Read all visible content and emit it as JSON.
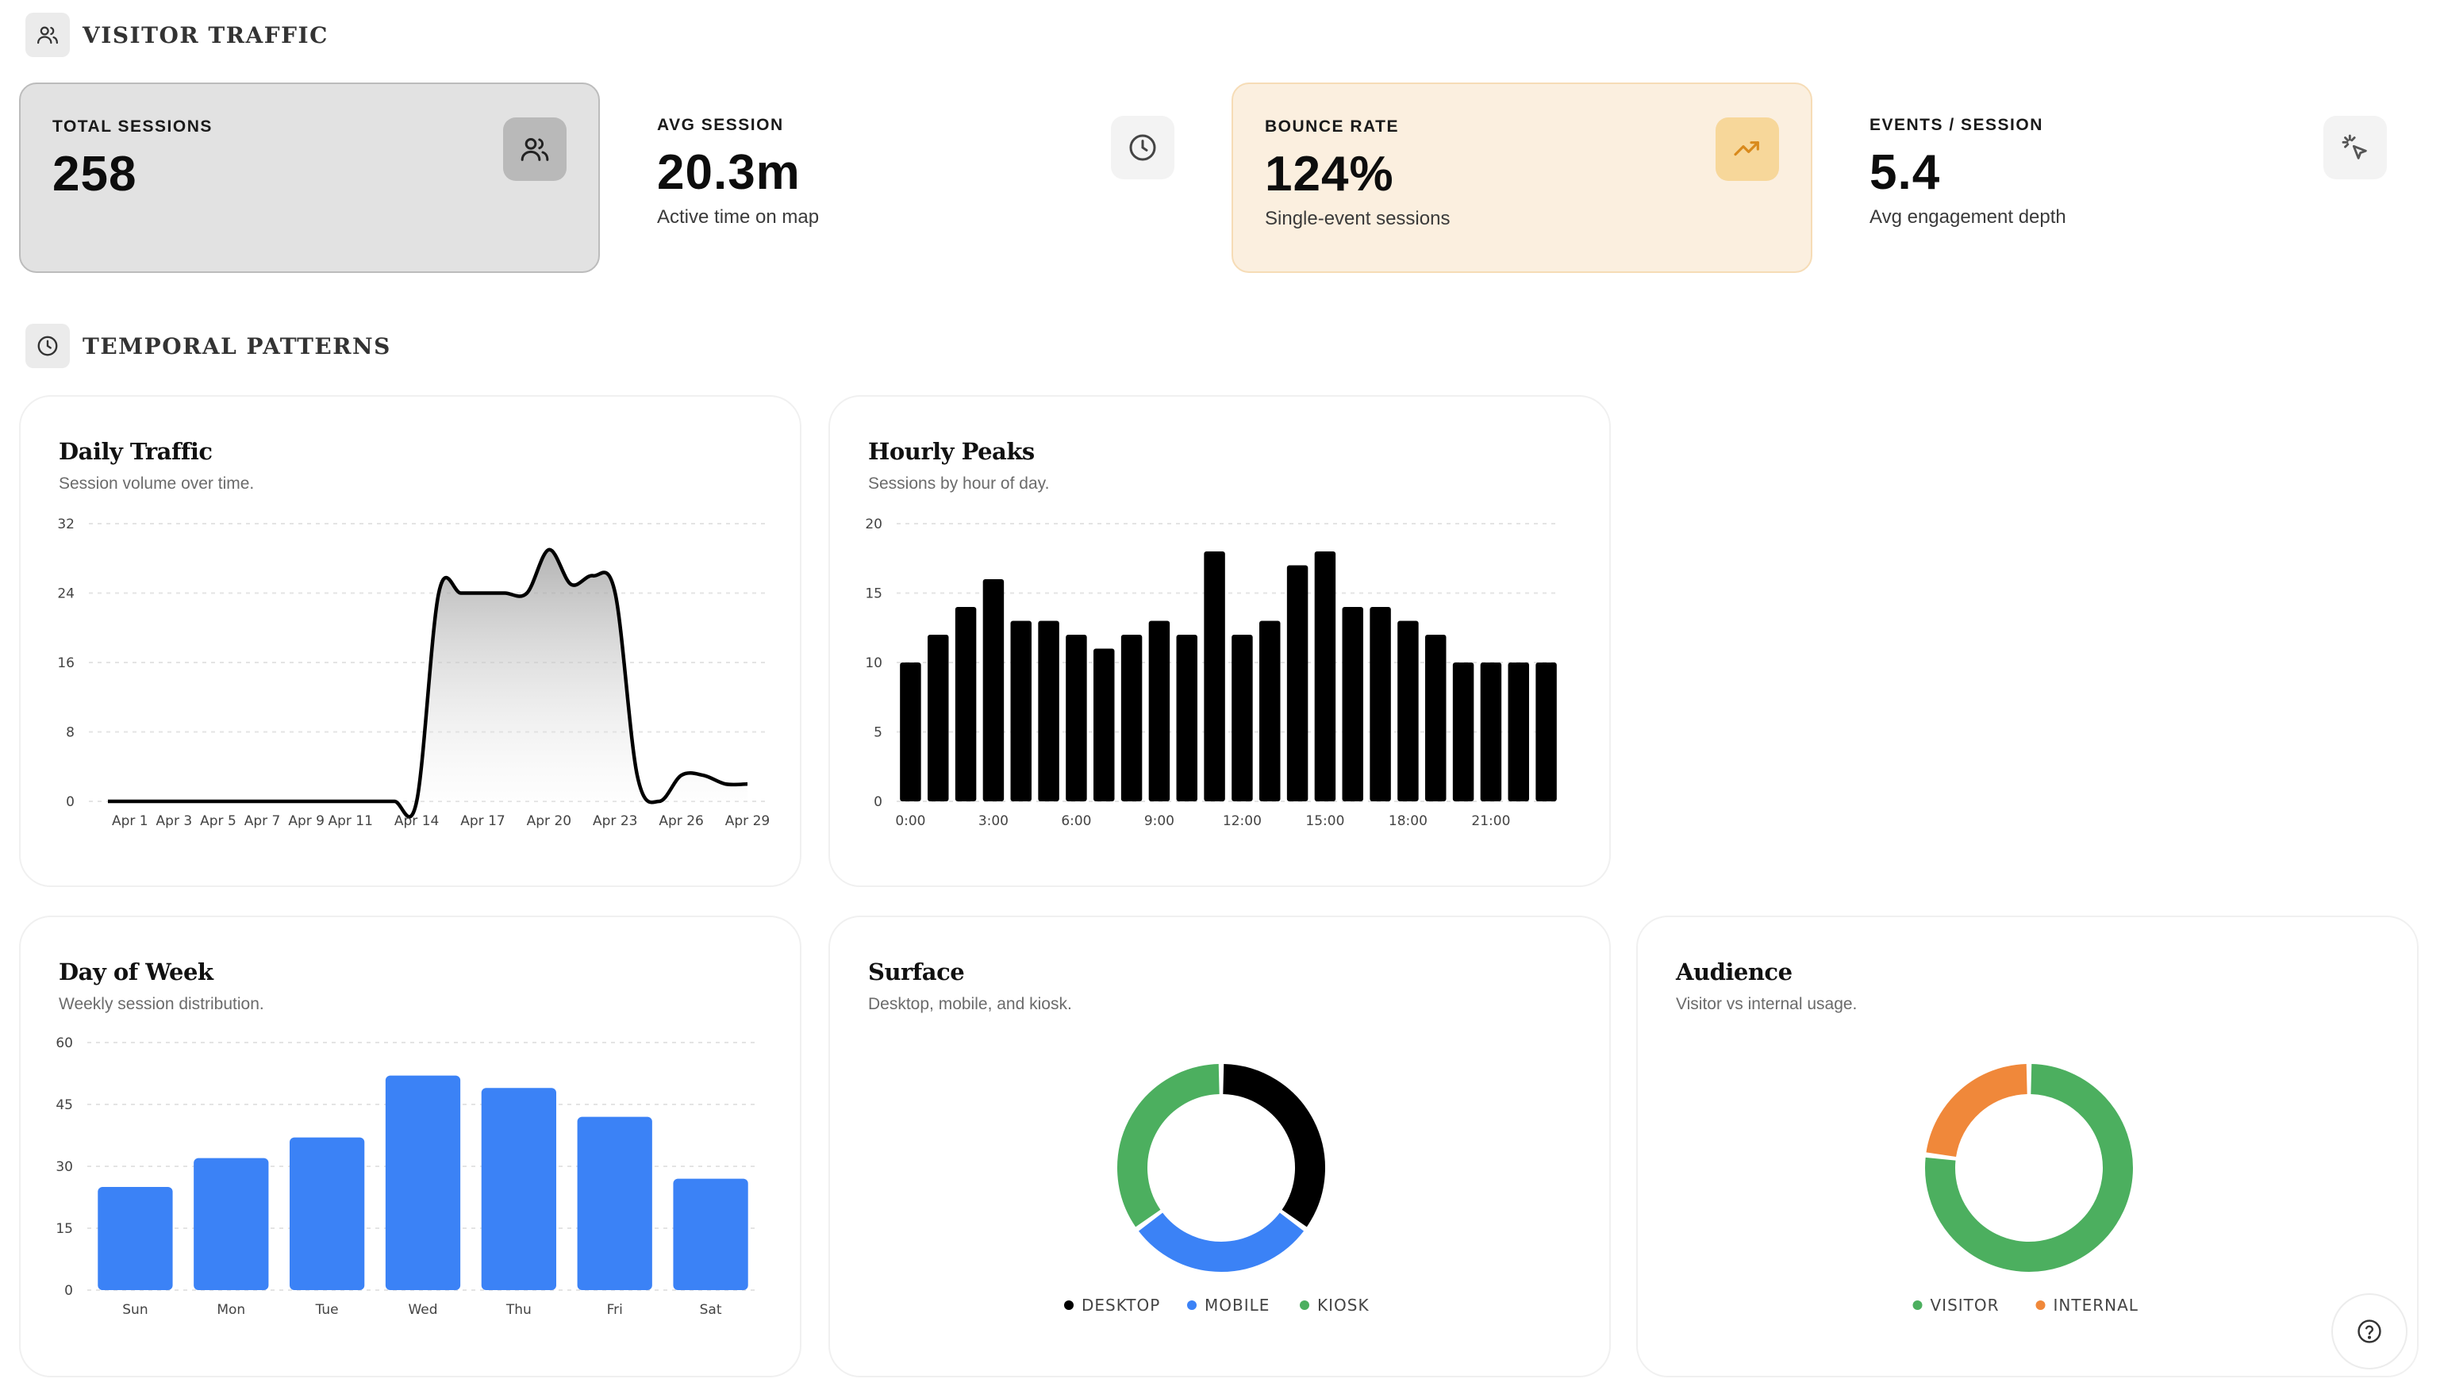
{
  "sections": {
    "visitor": {
      "title": "VISITOR TRAFFIC",
      "icon": "users-icon"
    },
    "temporal": {
      "title": "TEMPORAL PATTERNS",
      "icon": "clock-icon"
    }
  },
  "stats": [
    {
      "label": "TOTAL SESSIONS",
      "value": "258",
      "sub": "",
      "icon": "users-icon"
    },
    {
      "label": "AVG SESSION",
      "value": "20.3m",
      "sub": "Active time on map",
      "icon": "clock-icon"
    },
    {
      "label": "BOUNCE RATE",
      "value": "124%",
      "sub": "Single-event sessions",
      "icon": "trending-up-icon"
    },
    {
      "label": "EVENTS / SESSION",
      "value": "5.4",
      "sub": "Avg engagement depth",
      "icon": "pointer-click-icon"
    }
  ],
  "colors": {
    "black": "#000000",
    "blue": "#3b82f6",
    "green": "#4caf5f",
    "orange": "#f0883a",
    "warm_bg": "#fbefdf"
  },
  "chart_data": [
    {
      "id": "daily",
      "type": "area",
      "title": "Daily Traffic",
      "subtitle": "Session volume over time.",
      "ylim": [
        0,
        32
      ],
      "yticks": [
        0,
        8,
        16,
        24,
        32
      ],
      "x_labels": [
        "Apr 1",
        "Apr 3",
        "Apr 5",
        "Apr 7",
        "Apr 9",
        "Apr 11",
        "Apr 14",
        "Apr 17",
        "Apr 20",
        "Apr 23",
        "Apr 26",
        "Apr 29"
      ],
      "x": [
        "Mar 31",
        "Apr 1",
        "Apr 2",
        "Apr 3",
        "Apr 4",
        "Apr 5",
        "Apr 6",
        "Apr 7",
        "Apr 8",
        "Apr 9",
        "Apr 10",
        "Apr 11",
        "Apr 12",
        "Apr 13",
        "Apr 14",
        "Apr 15",
        "Apr 16",
        "Apr 17",
        "Apr 18",
        "Apr 19",
        "Apr 20",
        "Apr 21",
        "Apr 22",
        "Apr 23",
        "Apr 24",
        "Apr 25",
        "Apr 26",
        "Apr 27",
        "Apr 28",
        "Apr 29"
      ],
      "values": [
        0,
        0,
        0,
        0,
        0,
        0,
        0,
        0,
        0,
        0,
        0,
        0,
        0,
        0,
        0,
        24,
        24,
        24,
        24,
        24,
        29,
        25,
        26,
        24,
        3,
        0,
        3,
        3,
        2,
        2
      ],
      "grid": true
    },
    {
      "id": "hourly",
      "type": "bar",
      "title": "Hourly Peaks",
      "subtitle": "Sessions by hour of day.",
      "ylim": [
        0,
        20
      ],
      "yticks": [
        0,
        5,
        10,
        15,
        20
      ],
      "x_labels": [
        "0:00",
        "3:00",
        "6:00",
        "9:00",
        "12:00",
        "15:00",
        "18:00",
        "21:00"
      ],
      "categories": [
        "0:00",
        "1:00",
        "2:00",
        "3:00",
        "4:00",
        "5:00",
        "6:00",
        "7:00",
        "8:00",
        "9:00",
        "10:00",
        "11:00",
        "12:00",
        "13:00",
        "14:00",
        "15:00",
        "16:00",
        "17:00",
        "18:00",
        "19:00",
        "20:00",
        "21:00",
        "22:00",
        "23:00"
      ],
      "values": [
        10,
        12,
        14,
        16,
        13,
        13,
        12,
        11,
        12,
        13,
        12,
        18,
        12,
        13,
        17,
        18,
        14,
        14,
        13,
        12,
        10,
        10,
        10,
        10
      ],
      "grid": true
    },
    {
      "id": "weekday",
      "type": "bar",
      "title": "Day of Week",
      "subtitle": "Weekly session distribution.",
      "ylim": [
        0,
        60
      ],
      "yticks": [
        0,
        15,
        30,
        45,
        60
      ],
      "categories": [
        "Sun",
        "Mon",
        "Tue",
        "Wed",
        "Thu",
        "Fri",
        "Sat"
      ],
      "values": [
        25,
        32,
        37,
        52,
        49,
        42,
        27
      ],
      "color": "#3b82f6",
      "grid": true
    },
    {
      "id": "surface",
      "type": "pie",
      "title": "Surface",
      "subtitle": "Desktop, mobile, and kiosk.",
      "labels": [
        "DESKTOP",
        "MOBILE",
        "KIOSK"
      ],
      "values": [
        35,
        30,
        35
      ],
      "colors": [
        "#000000",
        "#3b82f6",
        "#4caf5f"
      ],
      "legend": "bottom"
    },
    {
      "id": "audience",
      "type": "pie",
      "title": "Audience",
      "subtitle": "Visitor vs internal usage.",
      "labels": [
        "VISITOR",
        "INTERNAL"
      ],
      "values": [
        77,
        23
      ],
      "colors": [
        "#4caf5f",
        "#f0883a"
      ],
      "legend": "bottom"
    }
  ]
}
